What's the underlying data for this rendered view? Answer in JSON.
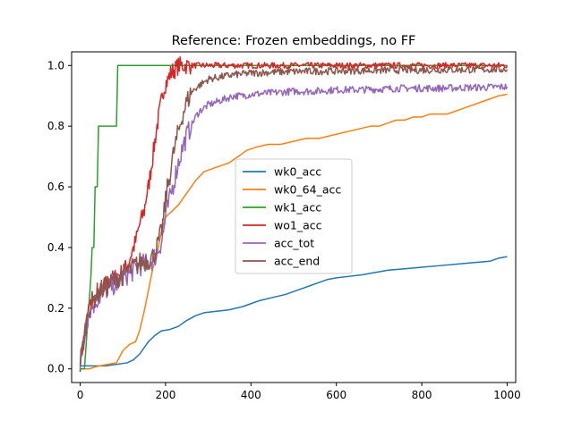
{
  "chart_data": {
    "type": "line",
    "title": "Reference: Frozen embeddings, no FF",
    "xlabel": "",
    "ylabel": "",
    "xlim": [
      -20,
      1020
    ],
    "ylim": [
      -0.045,
      1.045
    ],
    "xticks": [
      0,
      200,
      400,
      600,
      800,
      1000
    ],
    "yticks": [
      0.0,
      0.2,
      0.4,
      0.6,
      0.8,
      1.0
    ],
    "grid": false,
    "legend_position": "center",
    "series": [
      {
        "name": "wk0_acc",
        "color": "#1f77b4",
        "x": [
          0,
          60,
          110,
          125,
          140,
          160,
          175,
          190,
          210,
          230,
          250,
          270,
          290,
          320,
          350,
          380,
          400,
          420,
          450,
          480,
          500,
          520,
          540,
          560,
          580,
          600,
          630,
          660,
          680,
          700,
          720,
          760,
          800,
          840,
          880,
          920,
          960,
          980,
          1000
        ],
        "values": [
          0.01,
          0.01,
          0.02,
          0.03,
          0.05,
          0.09,
          0.11,
          0.125,
          0.13,
          0.14,
          0.16,
          0.175,
          0.185,
          0.19,
          0.195,
          0.205,
          0.215,
          0.225,
          0.235,
          0.245,
          0.255,
          0.265,
          0.275,
          0.285,
          0.295,
          0.3,
          0.305,
          0.31,
          0.315,
          0.32,
          0.325,
          0.33,
          0.335,
          0.34,
          0.345,
          0.35,
          0.355,
          0.365,
          0.37
        ]
      },
      {
        "name": "wk0_64_acc",
        "color": "#ff7f0e",
        "x": [
          0,
          20,
          45,
          85,
          100,
          115,
          130,
          140,
          150,
          160,
          170,
          180,
          190,
          200,
          215,
          230,
          250,
          270,
          290,
          310,
          330,
          350,
          370,
          390,
          410,
          440,
          470,
          500,
          530,
          560,
          590,
          620,
          650,
          680,
          700,
          720,
          740,
          760,
          780,
          800,
          820,
          840,
          860,
          880,
          900,
          920,
          940,
          960,
          980,
          1000
        ],
        "values": [
          0.0,
          0.0,
          0.01,
          0.02,
          0.06,
          0.08,
          0.09,
          0.13,
          0.19,
          0.26,
          0.33,
          0.38,
          0.45,
          0.5,
          0.52,
          0.54,
          0.58,
          0.62,
          0.65,
          0.66,
          0.67,
          0.68,
          0.7,
          0.72,
          0.73,
          0.74,
          0.74,
          0.75,
          0.76,
          0.76,
          0.77,
          0.78,
          0.79,
          0.8,
          0.8,
          0.81,
          0.82,
          0.82,
          0.83,
          0.83,
          0.84,
          0.84,
          0.84,
          0.85,
          0.86,
          0.87,
          0.88,
          0.89,
          0.9,
          0.905
        ]
      },
      {
        "name": "wk1_acc",
        "color": "#2ca02c",
        "x": [
          0,
          10,
          20,
          25,
          28,
          30,
          32,
          35,
          38,
          40,
          43,
          45,
          50,
          60,
          70,
          80,
          85,
          88,
          90,
          100,
          200,
          300,
          500,
          700,
          1000
        ],
        "values": [
          0.0,
          0.0,
          0.2,
          0.3,
          0.4,
          0.4,
          0.4,
          0.6,
          0.6,
          0.6,
          0.8,
          0.8,
          0.8,
          0.8,
          0.8,
          0.8,
          0.8,
          1.0,
          1.0,
          1.0,
          1.0,
          1.0,
          1.0,
          1.0,
          1.0
        ]
      },
      {
        "name": "wo1_acc",
        "color": "#d62728",
        "x": [
          0,
          20,
          40,
          60,
          80,
          100,
          110,
          120,
          130,
          140,
          150,
          155,
          160,
          165,
          170,
          175,
          180,
          185,
          190,
          195,
          200,
          205,
          210,
          215,
          220,
          225,
          230,
          240,
          260,
          300,
          400,
          500,
          600,
          700,
          800,
          900,
          1000
        ],
        "values": [
          0.02,
          0.2,
          0.24,
          0.28,
          0.3,
          0.32,
          0.34,
          0.38,
          0.42,
          0.48,
          0.52,
          0.57,
          0.6,
          0.65,
          0.7,
          0.75,
          0.8,
          0.84,
          0.88,
          0.92,
          0.94,
          0.95,
          0.97,
          0.98,
          0.985,
          0.99,
          1.0,
          1.0,
          1.0,
          1.0,
          1.0,
          1.0,
          1.0,
          1.0,
          1.0,
          1.0,
          1.0
        ]
      },
      {
        "name": "acc_tot",
        "color": "#9467bd",
        "x": [
          0,
          20,
          40,
          60,
          80,
          100,
          120,
          140,
          160,
          170,
          180,
          190,
          195,
          200,
          210,
          220,
          230,
          240,
          250,
          260,
          270,
          280,
          290,
          300,
          320,
          340,
          360,
          380,
          400,
          450,
          500,
          550,
          600,
          650,
          700,
          750,
          800,
          850,
          900,
          950,
          1000
        ],
        "values": [
          0.01,
          0.19,
          0.23,
          0.26,
          0.28,
          0.3,
          0.32,
          0.34,
          0.35,
          0.36,
          0.38,
          0.42,
          0.45,
          0.5,
          0.56,
          0.62,
          0.68,
          0.73,
          0.77,
          0.8,
          0.83,
          0.85,
          0.86,
          0.87,
          0.88,
          0.89,
          0.9,
          0.9,
          0.905,
          0.91,
          0.915,
          0.915,
          0.92,
          0.92,
          0.922,
          0.925,
          0.925,
          0.925,
          0.927,
          0.928,
          0.93
        ]
      },
      {
        "name": "acc_end",
        "color": "#8c564b",
        "x": [
          0,
          20,
          40,
          60,
          80,
          100,
          120,
          140,
          160,
          170,
          180,
          190,
          195,
          200,
          210,
          220,
          230,
          240,
          250,
          260,
          270,
          280,
          290,
          300,
          320,
          340,
          360,
          380,
          400,
          450,
          500,
          550,
          600,
          650,
          700,
          750,
          800,
          850,
          900,
          950,
          1000
        ],
        "values": [
          0.02,
          0.2,
          0.25,
          0.27,
          0.29,
          0.31,
          0.33,
          0.35,
          0.36,
          0.37,
          0.4,
          0.45,
          0.49,
          0.56,
          0.64,
          0.72,
          0.78,
          0.84,
          0.88,
          0.91,
          0.925,
          0.935,
          0.945,
          0.955,
          0.96,
          0.965,
          0.97,
          0.972,
          0.975,
          0.978,
          0.98,
          0.981,
          0.982,
          0.983,
          0.984,
          0.985,
          0.985,
          0.986,
          0.986,
          0.987,
          0.987
        ]
      }
    ]
  }
}
